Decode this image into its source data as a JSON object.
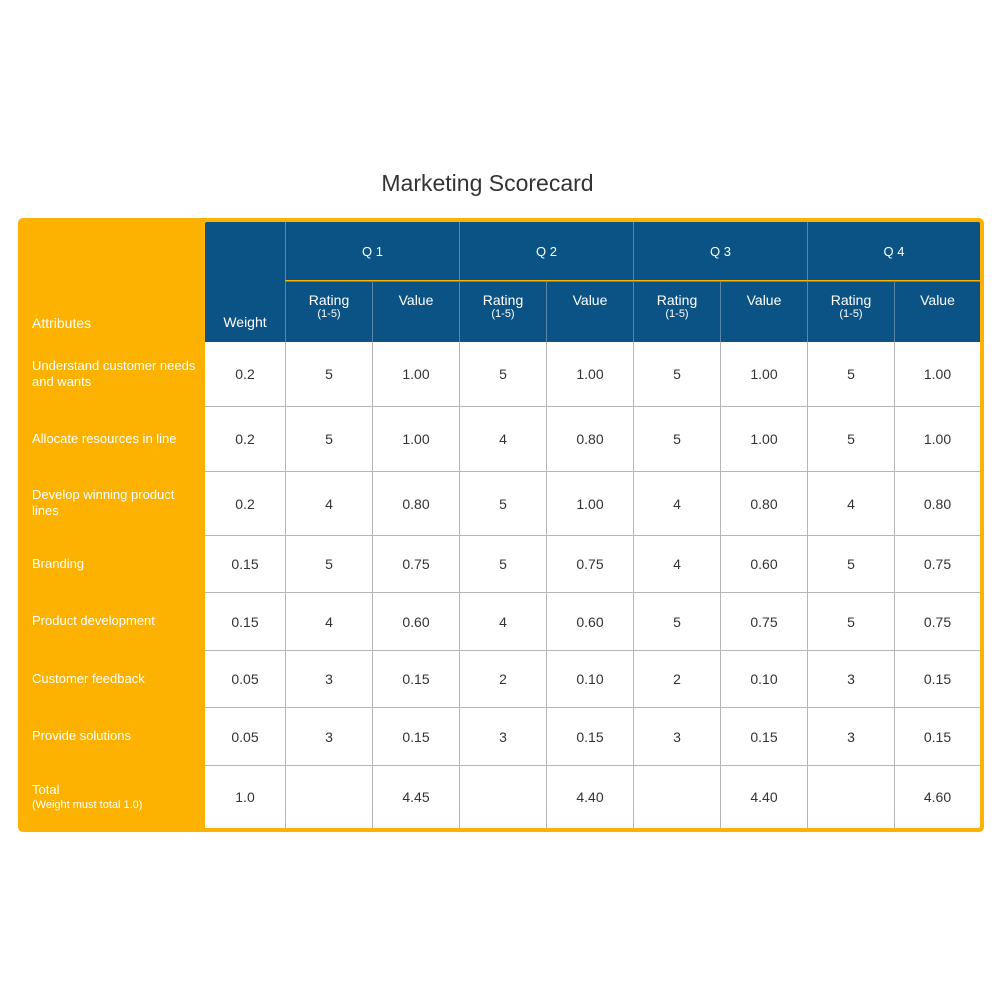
{
  "title": "Marketing Scorecard",
  "header": {
    "attributes": "Attributes",
    "weight": "Weight",
    "quarters": [
      "Q 1",
      "Q 2",
      "Q 3",
      "Q 4"
    ],
    "rating": "Rating",
    "rating_scale": "(1-5)",
    "value": "Value"
  },
  "rows": [
    {
      "attribute": "Understand customer needs and wants",
      "weight": "0.2",
      "cells": [
        "5",
        "1.00",
        "5",
        "1.00",
        "5",
        "1.00",
        "5",
        "1.00"
      ]
    },
    {
      "attribute": "Allocate resources in line",
      "weight": "0.2",
      "cells": [
        "5",
        "1.00",
        "4",
        "0.80",
        "5",
        "1.00",
        "5",
        "1.00"
      ]
    },
    {
      "attribute": "Develop winning product lines",
      "weight": "0.2",
      "cells": [
        "4",
        "0.80",
        "5",
        "1.00",
        "4",
        "0.80",
        "4",
        "0.80"
      ]
    },
    {
      "attribute": "Branding",
      "weight": "0.15",
      "cells": [
        "5",
        "0.75",
        "5",
        "0.75",
        "4",
        "0.60",
        "5",
        "0.75"
      ]
    },
    {
      "attribute": "Product development",
      "weight": "0.15",
      "cells": [
        "4",
        "0.60",
        "4",
        "0.60",
        "5",
        "0.75",
        "5",
        "0.75"
      ]
    },
    {
      "attribute": "Customer feedback",
      "weight": "0.05",
      "cells": [
        "3",
        "0.15",
        "2",
        "0.10",
        "2",
        "0.10",
        "3",
        "0.15"
      ]
    },
    {
      "attribute": "Provide solutions",
      "weight": "0.05",
      "cells": [
        "3",
        "0.15",
        "3",
        "0.15",
        "3",
        "0.15",
        "3",
        "0.15"
      ]
    }
  ],
  "total": {
    "label": "Total",
    "note": "(Weight must total 1.0)",
    "weight": "1.0",
    "cells": [
      "",
      "4.45",
      "",
      "4.40",
      "",
      "4.40",
      "",
      "4.60"
    ]
  },
  "colors": {
    "accent": "#FDB201",
    "header": "#0C5385",
    "grid": "#b5b5b5"
  }
}
